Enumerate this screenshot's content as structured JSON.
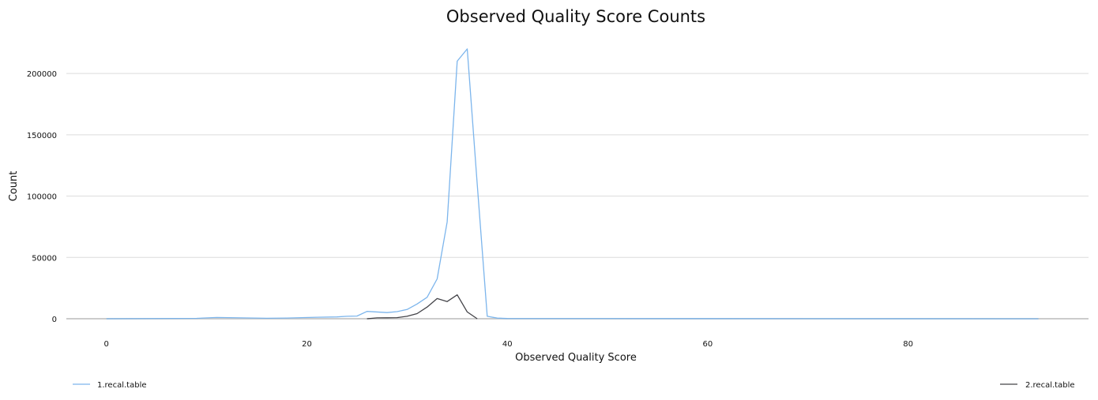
{
  "chart_data": {
    "type": "line",
    "title": "Observed Quality Score Counts",
    "xlabel": "Observed Quality Score",
    "ylabel": "Count",
    "xlim": [
      -4,
      98
    ],
    "ylim": [
      0,
      220000
    ],
    "xticks": [
      "0",
      "20",
      "40",
      "60",
      "80"
    ],
    "xtick_values": [
      0,
      20,
      40,
      60,
      80
    ],
    "yticks": [
      "0",
      "50000",
      "100000",
      "150000",
      "200000"
    ],
    "ytick_values": [
      0,
      50000,
      100000,
      150000,
      200000
    ],
    "grid": "horizontal",
    "series": [
      {
        "name": "1.recal.table",
        "color": "#7cb5ec",
        "x": [
          0,
          9,
          11,
          16,
          18,
          21,
          23,
          24,
          25,
          26,
          28,
          29,
          30,
          31,
          32,
          33,
          34,
          35,
          36,
          37,
          38,
          39,
          40,
          93
        ],
        "y": [
          0,
          300,
          1000,
          400,
          600,
          1200,
          1500,
          2000,
          2200,
          6000,
          5000,
          5800,
          7500,
          12000,
          17500,
          32500,
          79000,
          210000,
          220000,
          110000,
          2000,
          500,
          200,
          0
        ]
      },
      {
        "name": "2.recal.table",
        "color": "#434348",
        "x": [
          26,
          27,
          28,
          29,
          30,
          31,
          32,
          33,
          34,
          35,
          36,
          37
        ],
        "y": [
          0,
          700,
          800,
          900,
          2000,
          4200,
          9500,
          16500,
          14000,
          19500,
          5500,
          0
        ]
      }
    ]
  }
}
